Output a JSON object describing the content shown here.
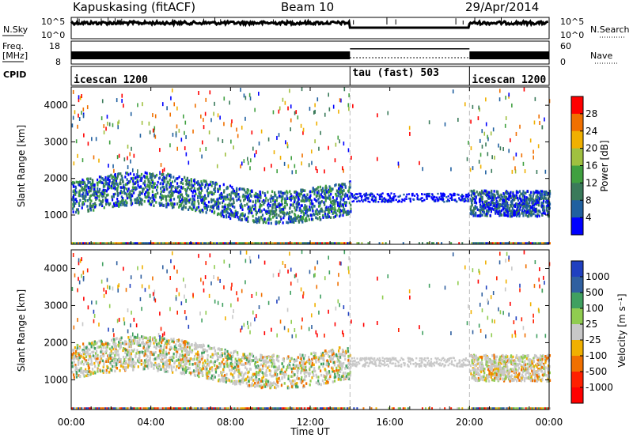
{
  "header": {
    "station": "Kapuskasing (fitACF)",
    "beam": "Beam 10",
    "date": "29/Apr/2014"
  },
  "noise_panel": {
    "left_label": "N.Sky",
    "left_ticks": [
      "10^5",
      "10^0"
    ],
    "right_label": "N.Search",
    "right_ticks": [
      "10^5",
      "10^0"
    ]
  },
  "freq_panel": {
    "left_label_1": "Freq.",
    "left_label_2": "[MHz]",
    "left_ticks": [
      "18",
      "8"
    ],
    "right_label": "Nave",
    "right_ticks": [
      "60",
      "0"
    ]
  },
  "cpid_panel": {
    "label": "CPID",
    "segments": [
      {
        "name": "icescan 1200",
        "start": 0,
        "end": 14
      },
      {
        "name": "tau (fast) 503",
        "start": 14,
        "end": 20
      },
      {
        "name": "icescan 1200",
        "start": 20,
        "end": 24
      }
    ]
  },
  "power_panel": {
    "ylabel": "Slant Range [km]",
    "yticks": [
      "1000",
      "2000",
      "3000",
      "4000"
    ],
    "colorbar_label": "Power [dB]",
    "colorbar_ticks": [
      "4",
      "8",
      "12",
      "16",
      "20",
      "24",
      "28"
    ],
    "colors": [
      "#0000ff",
      "#2060a0",
      "#3a7a5a",
      "#40a040",
      "#a0c040",
      "#f0b000",
      "#f07000",
      "#ff0000"
    ]
  },
  "velocity_panel": {
    "ylabel": "Slant Range [km]",
    "yticks": [
      "1000",
      "2000",
      "3000",
      "4000"
    ],
    "colorbar_label": "Velocity [m s⁻¹]",
    "colorbar_ticks": [
      "1000",
      "500",
      "100",
      "25",
      "-25",
      "-100",
      "-500",
      "-1000"
    ],
    "colors": [
      "#2040c0",
      "#3060a0",
      "#40a060",
      "#90cc50",
      "#c8c8c8",
      "#f0b000",
      "#f07000",
      "#ff2000",
      "#ff0000"
    ]
  },
  "xaxis": {
    "label": "Time UT",
    "ticks": [
      "00:00",
      "04:00",
      "08:00",
      "12:00",
      "16:00",
      "20:00",
      "00:00"
    ]
  },
  "chart_data": [
    {
      "type": "heatmap",
      "title": "Power",
      "xlabel": "Time UT",
      "ylabel": "Slant Range [km]",
      "xlim": [
        0,
        24
      ],
      "ylim": [
        200,
        4500
      ],
      "colorbar": "Power [dB]",
      "clim": [
        0,
        32
      ],
      "scatter_bands": [
        {
          "t0": 0,
          "t1": 14,
          "r0": 900,
          "r1": 2000,
          "value_range": [
            4,
            20
          ]
        },
        {
          "t0": 14,
          "t1": 20,
          "r0": 1400,
          "r1": 1700,
          "value_range": [
            4,
            8
          ]
        },
        {
          "t0": 20,
          "t1": 24,
          "r0": 900,
          "r1": 1800,
          "value_range": [
            4,
            24
          ]
        }
      ]
    },
    {
      "type": "heatmap",
      "title": "Velocity",
      "xlabel": "Time UT",
      "ylabel": "Slant Range [km]",
      "xlim": [
        0,
        24
      ],
      "ylim": [
        200,
        4500
      ],
      "colorbar": "Velocity [m s-1]",
      "clim": [
        -1000,
        1000
      ],
      "scatter_bands": [
        {
          "t0": 0,
          "t1": 14,
          "r0": 900,
          "r1": 2000,
          "value_range": [
            -500,
            500
          ]
        },
        {
          "t0": 14,
          "t1": 20,
          "r0": 1400,
          "r1": 1700,
          "value_range": [
            -25,
            25
          ]
        },
        {
          "t0": 20,
          "t1": 24,
          "r0": 900,
          "r1": 1800,
          "value_range": [
            -500,
            100
          ]
        }
      ]
    }
  ]
}
